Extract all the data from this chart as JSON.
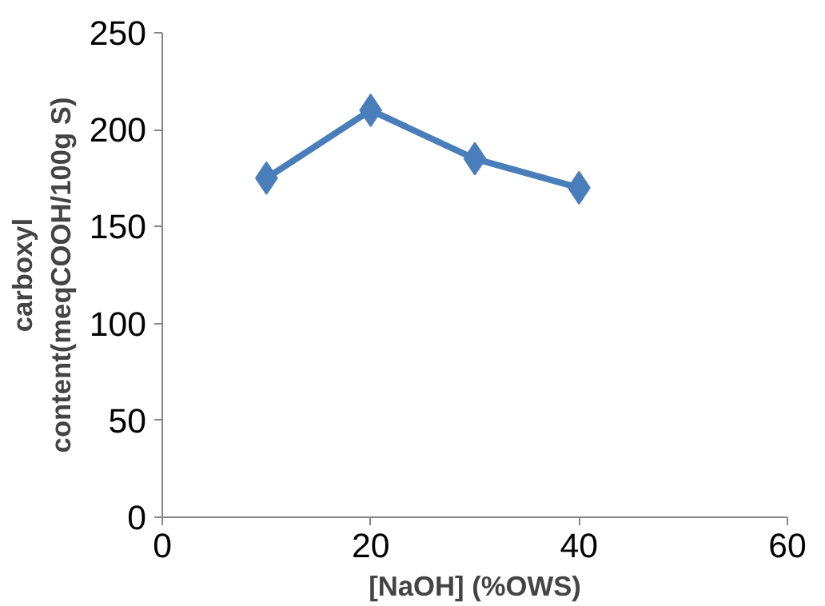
{
  "chart_data": {
    "type": "line",
    "xlabel": "[NaOH] (%OWS)",
    "ylabel": "carboxyl content(meqCOOH/100g S)",
    "x": [
      10,
      20,
      30,
      40
    ],
    "series": [
      {
        "color": "#4a7ebb",
        "values": [
          175,
          210,
          185,
          170
        ]
      }
    ],
    "xlim": [
      0,
      60
    ],
    "xticks": [
      0,
      20,
      40,
      60
    ],
    "ylim": [
      0,
      250
    ],
    "yticks": [
      0,
      50,
      100,
      150,
      200,
      250
    ],
    "grid": false,
    "marker": "diamond",
    "line_style": "solid"
  }
}
